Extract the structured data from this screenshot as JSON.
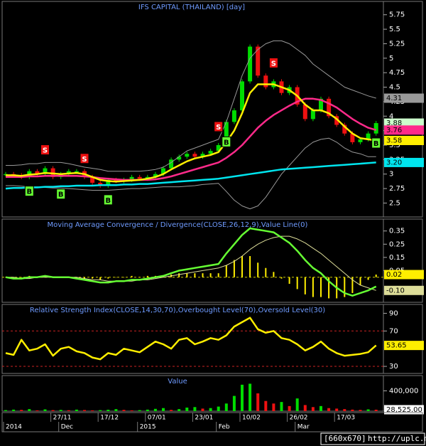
{
  "chart_data": [
    {
      "type": "candlestick",
      "title": "IFS CAPITAL (THAILAND) [day]",
      "ylim": [
        2.26,
        5.98
      ],
      "yticks": [
        5.75,
        5.5,
        5.25,
        5,
        4.75,
        4.5,
        4.25,
        4,
        3.75,
        3.5,
        3.25,
        3,
        2.75,
        2.5
      ],
      "up_color": "#00dd00",
      "down_color": "#ee1111",
      "series": [
        {
          "kind": "candle",
          "color": "#ccffcc",
          "end_label": "3.88",
          "values": [
            3.0,
            2.98,
            2.95,
            3.05,
            3.0,
            3.1,
            2.95,
            3.0,
            3.05,
            3.05,
            2.95,
            2.85,
            2.8,
            2.9,
            2.88,
            2.9,
            2.95,
            2.92,
            2.95,
            3.0,
            3.1,
            3.25,
            3.3,
            3.35,
            3.3,
            3.35,
            3.4,
            3.5,
            3.9,
            4.1,
            4.6,
            5.2,
            4.7,
            4.5,
            4.6,
            4.4,
            4.5,
            4.2,
            3.95,
            4.1,
            4.3,
            4.0,
            3.85,
            3.7,
            3.55,
            3.6,
            3.7,
            3.88
          ]
        },
        {
          "kind": "band",
          "color": "#999999",
          "end_label": "4.31",
          "values": [
            3.15,
            3.15,
            3.16,
            3.18,
            3.18,
            3.2,
            3.2,
            3.2,
            3.18,
            3.15,
            3.12,
            3.1,
            3.08,
            3.05,
            3.05,
            3.05,
            3.05,
            3.05,
            3.06,
            3.08,
            3.12,
            3.2,
            3.3,
            3.4,
            3.45,
            3.5,
            3.55,
            3.6,
            3.9,
            4.3,
            4.7,
            5.0,
            5.15,
            5.25,
            5.3,
            5.3,
            5.25,
            5.15,
            5.05,
            4.9,
            4.8,
            4.7,
            4.6,
            4.5,
            4.45,
            4.4,
            4.35,
            4.31
          ]
        },
        {
          "kind": "band",
          "color": "#999999",
          "values": [
            2.8,
            2.8,
            2.79,
            2.78,
            2.78,
            2.77,
            2.76,
            2.76,
            2.75,
            2.74,
            2.73,
            2.72,
            2.72,
            2.72,
            2.73,
            2.74,
            2.75,
            2.75,
            2.76,
            2.77,
            2.78,
            2.78,
            2.78,
            2.79,
            2.8,
            2.82,
            2.83,
            2.84,
            2.7,
            2.55,
            2.45,
            2.4,
            2.45,
            2.6,
            2.8,
            3.0,
            3.15,
            3.3,
            3.45,
            3.55,
            3.6,
            3.62,
            3.55,
            3.45,
            3.38,
            3.35,
            3.3,
            3.3
          ]
        },
        {
          "kind": "line",
          "color": "#00e5ee",
          "end_label": "3.20",
          "values": [
            2.75,
            2.76,
            2.76,
            2.77,
            2.77,
            2.78,
            2.78,
            2.79,
            2.79,
            2.8,
            2.8,
            2.8,
            2.81,
            2.81,
            2.81,
            2.82,
            2.82,
            2.83,
            2.83,
            2.84,
            2.85,
            2.86,
            2.87,
            2.88,
            2.89,
            2.9,
            2.91,
            2.92,
            2.94,
            2.96,
            2.98,
            3.0,
            3.02,
            3.04,
            3.06,
            3.08,
            3.09,
            3.1,
            3.11,
            3.12,
            3.13,
            3.14,
            3.15,
            3.16,
            3.17,
            3.18,
            3.19,
            3.2
          ]
        },
        {
          "kind": "line",
          "color": "#ff2a8a",
          "end_label": "3.76",
          "values": [
            2.95,
            2.95,
            2.95,
            2.96,
            2.96,
            2.97,
            2.97,
            2.97,
            2.97,
            2.97,
            2.96,
            2.95,
            2.93,
            2.92,
            2.91,
            2.9,
            2.9,
            2.9,
            2.9,
            2.91,
            2.93,
            2.96,
            3.0,
            3.04,
            3.08,
            3.12,
            3.16,
            3.2,
            3.28,
            3.38,
            3.5,
            3.65,
            3.8,
            3.92,
            4.02,
            4.1,
            4.18,
            4.25,
            4.3,
            4.3,
            4.28,
            4.22,
            4.15,
            4.05,
            3.95,
            3.87,
            3.8,
            3.76
          ]
        },
        {
          "kind": "line",
          "color": "#ffee00",
          "end_label": "3.58",
          "values": [
            2.98,
            2.98,
            2.97,
            2.99,
            3.0,
            3.02,
            3.01,
            3.0,
            3.01,
            3.02,
            3.0,
            2.95,
            2.9,
            2.88,
            2.87,
            2.88,
            2.89,
            2.9,
            2.92,
            2.95,
            3.0,
            3.08,
            3.15,
            3.22,
            3.27,
            3.3,
            3.33,
            3.38,
            3.55,
            3.75,
            4.05,
            4.4,
            4.55,
            4.55,
            4.55,
            4.5,
            4.45,
            4.35,
            4.2,
            4.1,
            4.1,
            4.05,
            3.95,
            3.82,
            3.7,
            3.62,
            3.6,
            3.58
          ]
        }
      ],
      "signals": [
        null,
        null,
        null,
        "B",
        null,
        "S",
        null,
        "B",
        null,
        null,
        "S",
        null,
        null,
        "B",
        null,
        null,
        null,
        null,
        null,
        null,
        null,
        null,
        null,
        null,
        null,
        null,
        null,
        "S",
        "B",
        null,
        null,
        null,
        null,
        null,
        "S",
        null,
        null,
        null,
        null,
        null,
        null,
        null,
        null,
        null,
        null,
        null,
        null,
        "B"
      ]
    },
    {
      "type": "macd",
      "title": "Moving Average Convergence / Divergence(CLOSE,26,12,9),Value Line(0)",
      "ylim": [
        -0.19,
        0.44
      ],
      "yticks": [
        0.35,
        0.25,
        0.15,
        0.05
      ],
      "levels": [
        0
      ],
      "level_color": "#cccc00",
      "series": [
        {
          "kind": "bars",
          "color": "#ffee00",
          "end_label": "0.02",
          "values": [
            0,
            -0.01,
            0,
            0.01,
            0,
            0.01,
            0,
            0,
            0,
            -0.01,
            -0.01,
            -0.01,
            -0.02,
            -0.01,
            0,
            0,
            0.01,
            0,
            0.01,
            0.01,
            0.01,
            0.02,
            0.03,
            0.03,
            0.03,
            0.03,
            0.03,
            0.03,
            0.09,
            0.13,
            0.16,
            0.16,
            0.11,
            0.07,
            0.04,
            -0.01,
            -0.05,
            -0.09,
            -0.13,
            -0.15,
            -0.15,
            -0.16,
            -0.16,
            -0.15,
            -0.12,
            -0.06,
            -0.02,
            0.02
          ]
        },
        {
          "kind": "band",
          "color": "#dddd99",
          "end_label": "-0.10",
          "values": [
            0,
            0,
            -0.01,
            -0.01,
            0,
            0,
            0,
            0,
            0,
            0,
            -0.01,
            -0.02,
            -0.02,
            -0.03,
            -0.03,
            -0.03,
            -0.03,
            -0.02,
            -0.02,
            -0.01,
            0,
            0.01,
            0.02,
            0.03,
            0.04,
            0.05,
            0.06,
            0.07,
            0.09,
            0.12,
            0.16,
            0.21,
            0.25,
            0.28,
            0.3,
            0.31,
            0.31,
            0.29,
            0.26,
            0.22,
            0.18,
            0.13,
            0.08,
            0.03,
            -0.02,
            -0.06,
            -0.08,
            -0.1
          ]
        },
        {
          "kind": "line",
          "color": "#66ff33",
          "values": [
            0,
            -0.01,
            -0.01,
            0,
            0,
            0.01,
            0,
            0,
            0,
            -0.01,
            -0.02,
            -0.03,
            -0.04,
            -0.04,
            -0.03,
            -0.03,
            -0.02,
            -0.02,
            -0.01,
            0,
            0.01,
            0.03,
            0.05,
            0.06,
            0.07,
            0.08,
            0.09,
            0.1,
            0.18,
            0.25,
            0.32,
            0.37,
            0.36,
            0.35,
            0.34,
            0.3,
            0.26,
            0.2,
            0.13,
            0.07,
            0.03,
            -0.03,
            -0.08,
            -0.12,
            -0.14,
            -0.12,
            -0.1,
            -0.07
          ]
        }
      ]
    },
    {
      "type": "line",
      "title": "Relative Strength Index(CLOSE,14,30,70),Overbought Level(70),Oversold Level(30)",
      "ylim": [
        22,
        100
      ],
      "yticks": [
        90,
        70,
        30
      ],
      "levels": [
        70,
        30
      ],
      "level_color": "#cc2222",
      "series": [
        {
          "kind": "line",
          "color": "#ffee00",
          "end_label": "53.65",
          "values": [
            45,
            43,
            60,
            48,
            50,
            55,
            42,
            50,
            52,
            47,
            45,
            40,
            38,
            45,
            43,
            50,
            48,
            46,
            52,
            58,
            55,
            50,
            60,
            62,
            55,
            58,
            62,
            60,
            65,
            75,
            80,
            85,
            72,
            68,
            70,
            62,
            60,
            55,
            48,
            52,
            58,
            50,
            45,
            42,
            43,
            44,
            46,
            53.65
          ]
        }
      ]
    },
    {
      "type": "bar",
      "title": "Value",
      "ylim": [
        0,
        700000
      ],
      "yticks": [
        {
          "value": 400000,
          "label": "400,000"
        }
      ],
      "up_color": "#00dd00",
      "down_color": "#ee1111",
      "series": [
        {
          "kind": "bars",
          "color": "#ffffff",
          "end_label": "28,525.00",
          "values": [
            20000,
            30000,
            25000,
            40000,
            15000,
            35000,
            20000,
            25000,
            18000,
            30000,
            22000,
            15000,
            20000,
            28000,
            40000,
            25000,
            15000,
            20000,
            30000,
            45000,
            60000,
            25000,
            40000,
            70000,
            80000,
            50000,
            60000,
            90000,
            150000,
            300000,
            520000,
            540000,
            350000,
            200000,
            150000,
            180000,
            100000,
            250000,
            120000,
            80000,
            100000,
            60000,
            50000,
            40000,
            30000,
            25000,
            35000,
            28525
          ]
        }
      ],
      "x_labels": [
        null,
        null,
        null,
        null,
        null,
        null,
        "27/11",
        null,
        null,
        null,
        null,
        null,
        "17/12",
        null,
        null,
        null,
        null,
        null,
        "07/01",
        null,
        null,
        null,
        null,
        null,
        "23/01",
        null,
        null,
        null,
        null,
        null,
        "10/02",
        null,
        null,
        null,
        null,
        null,
        "26/02",
        null,
        null,
        null,
        null,
        null,
        "17/03",
        null,
        null,
        null,
        null,
        null
      ],
      "x_period_labels": [
        "2014",
        null,
        null,
        null,
        null,
        null,
        null,
        "Dec",
        null,
        null,
        null,
        null,
        null,
        null,
        null,
        null,
        null,
        "2015",
        null,
        null,
        null,
        null,
        null,
        null,
        null,
        null,
        null,
        "Feb",
        null,
        null,
        null,
        null,
        null,
        null,
        null,
        null,
        null,
        "Mar",
        null,
        null,
        null,
        null,
        null,
        null,
        null,
        null,
        null,
        null
      ]
    }
  ],
  "footer": {
    "size": "[660x670]",
    "url": "http://uplc.me/"
  }
}
